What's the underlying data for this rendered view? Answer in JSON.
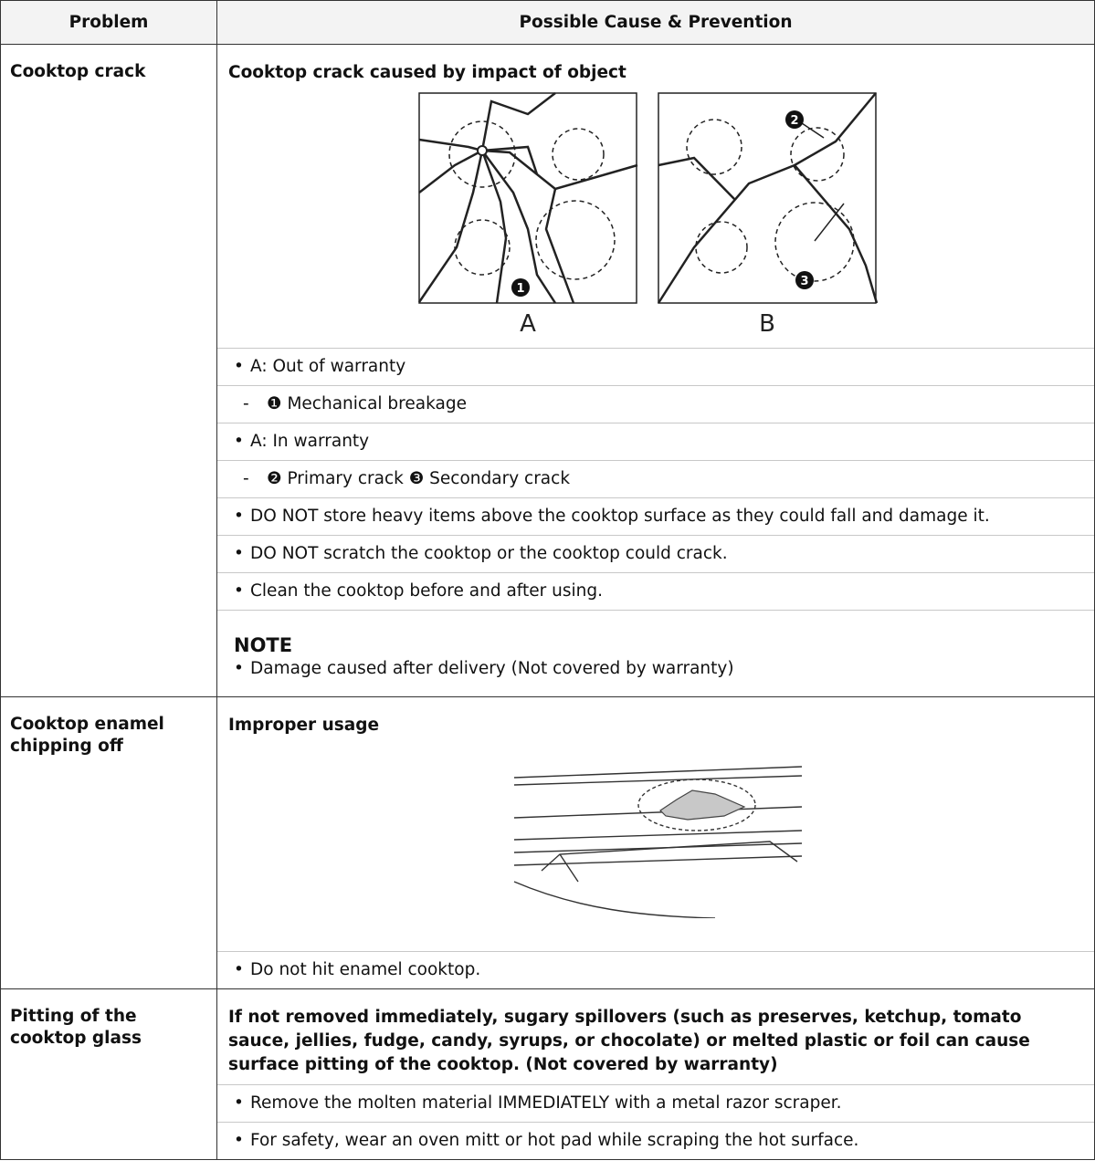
{
  "table": {
    "headers": [
      "Problem",
      "Possible Cause & Prevention"
    ],
    "rows": [
      {
        "problem": "Cooktop crack",
        "cause": "Cooktop crack caused by impact of object",
        "figure": {
          "captions": [
            "A",
            "B"
          ],
          "callouts": [
            "1",
            "2",
            "3"
          ]
        },
        "items": [
          {
            "bullet": "•",
            "text": "A: Out of warranty"
          },
          {
            "bullet": "-",
            "text": "❶ Mechanical breakage"
          },
          {
            "bullet": "•",
            "text": "A: In warranty"
          },
          {
            "bullet": "-",
            "text": "❷ Primary crack ❸ Secondary crack"
          },
          {
            "bullet": "•",
            "text": "DO NOT store heavy items above the cooktop surface as they could fall and damage it."
          },
          {
            "bullet": "•",
            "text": "DO NOT scratch the cooktop or the cooktop could crack."
          },
          {
            "bullet": "•",
            "text": "Clean the cooktop before and after using."
          }
        ],
        "note": {
          "title": "NOTE",
          "items": [
            {
              "bullet": "•",
              "text": "Damage caused after delivery (Not covered by warranty)"
            }
          ]
        }
      },
      {
        "problem": "Cooktop enamel chipping off",
        "cause": "Improper usage",
        "items": [
          {
            "bullet": "•",
            "text": "Do not hit enamel cooktop."
          }
        ]
      },
      {
        "problem": "Pitting of the cooktop glass",
        "cause": "If not removed immediately, sugary spillovers (such as preserves, ketchup, tomato sauce, jellies, fudge, candy, syrups, or chocolate) or melted plastic or foil can cause surface pitting of the cooktop. (Not covered by warranty)",
        "items": [
          {
            "bullet": "•",
            "text": "Remove the molten material IMMEDIATELY with a metal razor scraper."
          },
          {
            "bullet": "•",
            "text": "For safety, wear an oven mitt or hot pad while scraping the hot surface."
          }
        ]
      }
    ]
  }
}
